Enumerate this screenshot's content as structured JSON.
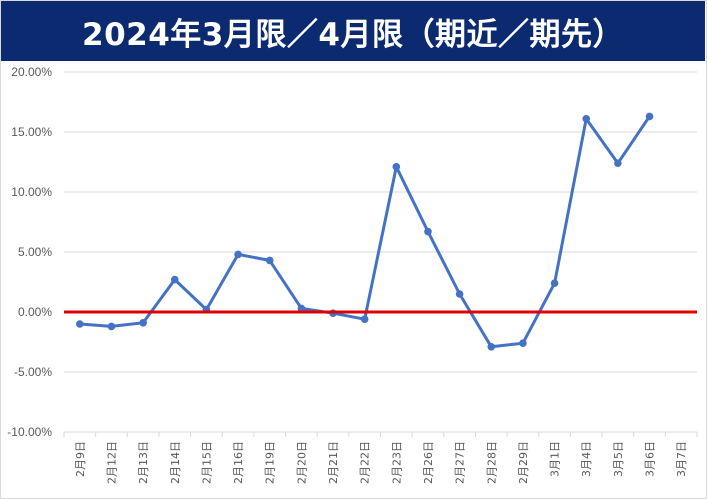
{
  "title": "2024年3月限／4月限（期近／期先）",
  "colors": {
    "title_bg": "#0b2a6f",
    "series": "#4472c4",
    "zero_line": "#e00000",
    "grid": "#d9d9d9",
    "tick_text": "#595959"
  },
  "chart_data": {
    "type": "line",
    "title": "2024年3月限／4月限（期近／期先）",
    "xlabel": "",
    "ylabel": "",
    "ylim": [
      -0.1,
      0.2
    ],
    "y_ticks": [
      0.2,
      0.15,
      0.1,
      0.05,
      0.0,
      -0.05,
      -0.1
    ],
    "y_tick_labels": [
      "20.00%",
      "15.00%",
      "10.00%",
      "5.00%",
      "0.00%",
      "-5.00%",
      "-10.00%"
    ],
    "categories": [
      "2月9日",
      "2月12日",
      "2月13日",
      "2月14日",
      "2月15日",
      "2月16日",
      "2月19日",
      "2月20日",
      "2月21日",
      "2月22日",
      "2月23日",
      "2月26日",
      "2月27日",
      "2月28日",
      "2月29日",
      "3月1日",
      "3月4日",
      "3月5日",
      "3月6日",
      "3月7日"
    ],
    "series": [
      {
        "name": "",
        "values": [
          -0.01,
          -0.012,
          -0.009,
          0.027,
          0.002,
          0.048,
          0.043,
          0.003,
          -0.001,
          -0.006,
          0.121,
          0.067,
          0.015,
          -0.029,
          -0.026,
          0.024,
          0.161,
          0.124,
          0.163,
          null
        ]
      }
    ],
    "reference_line": 0.0,
    "grid": true,
    "legend": "none"
  }
}
